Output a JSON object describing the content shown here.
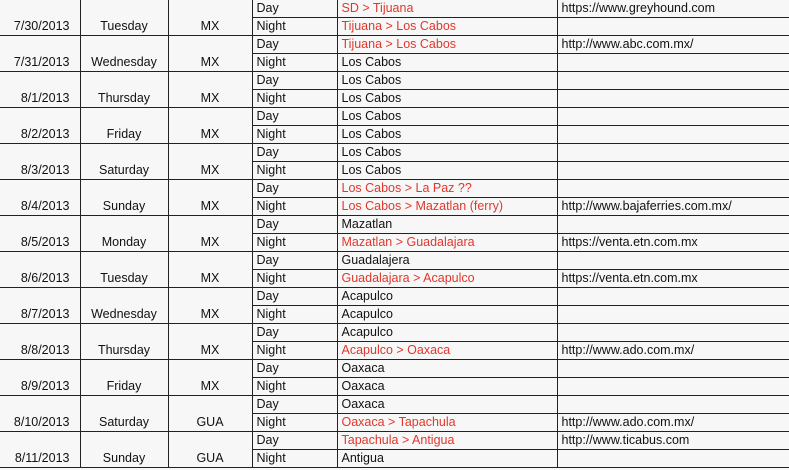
{
  "colors": {
    "travel": "#e0372c",
    "text": "#111111"
  },
  "rows": [
    {
      "date": "7/30/2013",
      "weekday": "Tuesday",
      "country": "MX",
      "slots": [
        {
          "period": "Day",
          "location": "SD > Tijuana",
          "travel": true,
          "url": "https://www.greyhound.com"
        },
        {
          "period": "Night",
          "location": "Tijuana > Los Cabos",
          "travel": true,
          "url": ""
        }
      ]
    },
    {
      "date": "7/31/2013",
      "weekday": "Wednesday",
      "country": "MX",
      "slots": [
        {
          "period": "Day",
          "location": "Tijuana > Los Cabos",
          "travel": true,
          "url": "http://www.abc.com.mx/"
        },
        {
          "period": "Night",
          "location": "Los Cabos",
          "travel": false,
          "url": ""
        }
      ]
    },
    {
      "date": "8/1/2013",
      "weekday": "Thursday",
      "country": "MX",
      "slots": [
        {
          "period": "Day",
          "location": "Los Cabos",
          "travel": false,
          "url": ""
        },
        {
          "period": "Night",
          "location": "Los Cabos",
          "travel": false,
          "url": ""
        }
      ]
    },
    {
      "date": "8/2/2013",
      "weekday": "Friday",
      "country": "MX",
      "slots": [
        {
          "period": "Day",
          "location": "Los Cabos",
          "travel": false,
          "url": ""
        },
        {
          "period": "Night",
          "location": "Los Cabos",
          "travel": false,
          "url": ""
        }
      ]
    },
    {
      "date": "8/3/2013",
      "weekday": "Saturday",
      "country": "MX",
      "slots": [
        {
          "period": "Day",
          "location": "Los Cabos",
          "travel": false,
          "url": ""
        },
        {
          "period": "Night",
          "location": "Los Cabos",
          "travel": false,
          "url": ""
        }
      ]
    },
    {
      "date": "8/4/2013",
      "weekday": "Sunday",
      "country": "MX",
      "slots": [
        {
          "period": "Day",
          "location": "Los Cabos > La Paz ??",
          "travel": true,
          "url": ""
        },
        {
          "period": "Night",
          "location": "Los Cabos > Mazatlan (ferry)",
          "travel": true,
          "url": "http://www.bajaferries.com.mx/"
        }
      ]
    },
    {
      "date": "8/5/2013",
      "weekday": "Monday",
      "country": "MX",
      "slots": [
        {
          "period": "Day",
          "location": "Mazatlan",
          "travel": false,
          "url": ""
        },
        {
          "period": "Night",
          "location": "Mazatlan > Guadalajara",
          "travel": true,
          "url": "https://venta.etn.com.mx"
        }
      ]
    },
    {
      "date": "8/6/2013",
      "weekday": "Tuesday",
      "country": "MX",
      "slots": [
        {
          "period": "Day",
          "location": "Guadalajera",
          "travel": false,
          "url": ""
        },
        {
          "period": "Night",
          "location": "Guadalajara > Acapulco",
          "travel": true,
          "url": "https://venta.etn.com.mx"
        }
      ]
    },
    {
      "date": "8/7/2013",
      "weekday": "Wednesday",
      "country": "MX",
      "slots": [
        {
          "period": "Day",
          "location": "Acapulco",
          "travel": false,
          "url": ""
        },
        {
          "period": "Night",
          "location": "Acapulco",
          "travel": false,
          "url": ""
        }
      ]
    },
    {
      "date": "8/8/2013",
      "weekday": "Thursday",
      "country": "MX",
      "slots": [
        {
          "period": "Day",
          "location": "Acapulco",
          "travel": false,
          "url": ""
        },
        {
          "period": "Night",
          "location": "Acapulco > Oaxaca",
          "travel": true,
          "url": "http://www.ado.com.mx/"
        }
      ]
    },
    {
      "date": "8/9/2013",
      "weekday": "Friday",
      "country": "MX",
      "slots": [
        {
          "period": "Day",
          "location": "Oaxaca",
          "travel": false,
          "url": ""
        },
        {
          "period": "Night",
          "location": "Oaxaca",
          "travel": false,
          "url": ""
        }
      ]
    },
    {
      "date": "8/10/2013",
      "weekday": "Saturday",
      "country": "GUA",
      "slots": [
        {
          "period": "Day",
          "location": "Oaxaca",
          "travel": false,
          "url": ""
        },
        {
          "period": "Night",
          "location": "Oaxaca > Tapachula",
          "travel": true,
          "url": "http://www.ado.com.mx/"
        }
      ]
    },
    {
      "date": "8/11/2013",
      "weekday": "Sunday",
      "country": "GUA",
      "slots": [
        {
          "period": "Day",
          "location": "Tapachula > Antigua",
          "travel": true,
          "url": "http://www.ticabus.com"
        },
        {
          "period": "Night",
          "location": "Antigua",
          "travel": false,
          "url": ""
        }
      ]
    }
  ]
}
